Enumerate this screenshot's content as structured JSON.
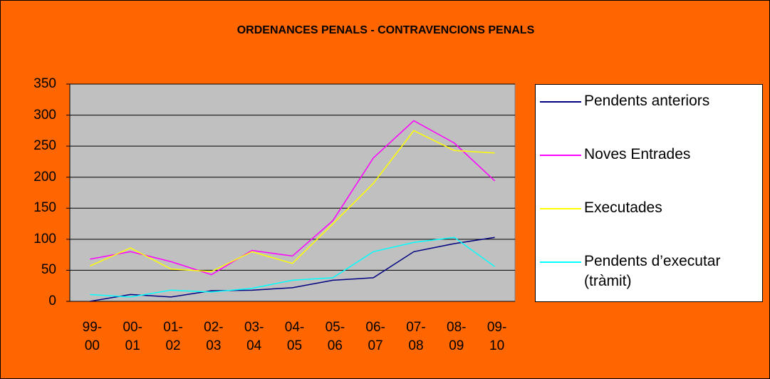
{
  "chart_data": {
    "type": "line",
    "title": "ORDENANCES PENALS - CONTRAVENCIONS PENALS",
    "categories": [
      "99-\n00",
      "00-\n01",
      "01-\n02",
      "02-\n03",
      "03-\n04",
      "04-\n05",
      "05-\n06",
      "06-\n07",
      "07-\n08",
      "08-\n09",
      "09-\n10"
    ],
    "series": [
      {
        "name": "Pendents anteriors",
        "color": "#000080",
        "values": [
          0,
          11,
          7,
          17,
          18,
          22,
          34,
          38,
          80,
          93,
          103
        ]
      },
      {
        "name": "Noves Entrades",
        "color": "#ff00ff",
        "values": [
          68,
          80,
          64,
          43,
          82,
          73,
          130,
          231,
          291,
          255,
          194
        ]
      },
      {
        "name": "Executades",
        "color": "#ffff00",
        "values": [
          57,
          86,
          52,
          48,
          80,
          61,
          125,
          190,
          275,
          243,
          239
        ]
      },
      {
        "name": "Pendents d’executar\n(tràmit)",
        "color": "#00ffff",
        "values": [
          11,
          7,
          18,
          15,
          21,
          34,
          38,
          80,
          95,
          103,
          56
        ]
      }
    ],
    "ylim": [
      0,
      350
    ],
    "yticks": [
      0,
      50,
      100,
      150,
      200,
      250,
      300,
      350
    ],
    "grid": true,
    "legend": "right"
  }
}
